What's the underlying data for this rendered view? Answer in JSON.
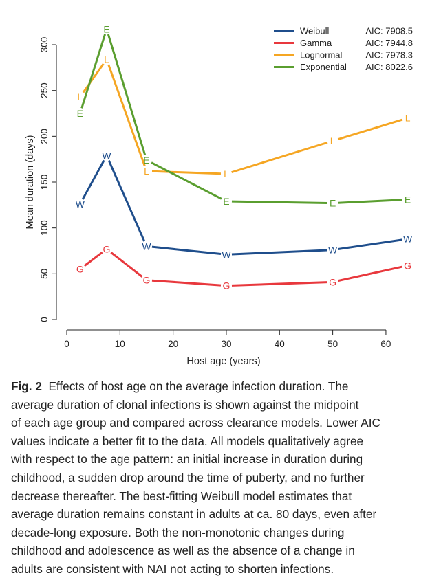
{
  "chart_data": {
    "type": "line",
    "xlabel": "Host age (years)",
    "ylabel": "Mean duration (days)",
    "xlim": [
      0,
      65
    ],
    "ylim": [
      0,
      320
    ],
    "xticks": [
      0,
      10,
      20,
      30,
      40,
      50,
      60
    ],
    "yticks": [
      0,
      50,
      100,
      150,
      200,
      250,
      300
    ],
    "grid": false,
    "legend_position": "top-right",
    "series": [
      {
        "name": "Weibull",
        "aic": "AIC: 7908.5",
        "marker": "W",
        "color": "#1f4e8c",
        "x": [
          2.5,
          7.5,
          15,
          30,
          50,
          65
        ],
        "y": [
          126,
          179,
          80,
          71,
          76,
          88
        ]
      },
      {
        "name": "Gamma",
        "aic": "AIC: 7944.8",
        "marker": "G",
        "color": "#e8383d",
        "x": [
          2.5,
          7.5,
          15,
          30,
          50,
          65
        ],
        "y": [
          55,
          77,
          43,
          37,
          41,
          59
        ]
      },
      {
        "name": "Lognormal",
        "aic": "AIC: 7978.3",
        "marker": "L",
        "color": "#f5a623",
        "x": [
          2.5,
          7.5,
          15,
          30,
          50,
          65
        ],
        "y": [
          243,
          284,
          162,
          159,
          195,
          220
        ]
      },
      {
        "name": "Exponential",
        "aic": "AIC: 8022.6",
        "marker": "E",
        "color": "#5a9e2f",
        "x": [
          2.5,
          7.5,
          15,
          30,
          50,
          65
        ],
        "y": [
          225,
          317,
          174,
          129,
          127,
          131
        ]
      }
    ]
  },
  "caption": {
    "label": "Fig. 2",
    "lines": [
      "Effects of host age on the average infection duration. The",
      "average duration of clonal infections is shown against the midpoint",
      "of each age group and compared across clearance models. Lower AIC",
      "values indicate a better fit to the data. All models qualitatively agree",
      "with respect to the age pattern: an initial increase in duration during",
      "childhood, a sudden drop around the time of puberty, and no further",
      "decrease thereafter. The best-fitting Weibull model estimates that",
      "average duration remains constant in adults at ca. 80 days, even after",
      "decade-long exposure. Both the non-monotonic changes during",
      "childhood and adolescence as well as the absence of a change in",
      "adults are consistent with NAI not acting to shorten infections."
    ]
  }
}
